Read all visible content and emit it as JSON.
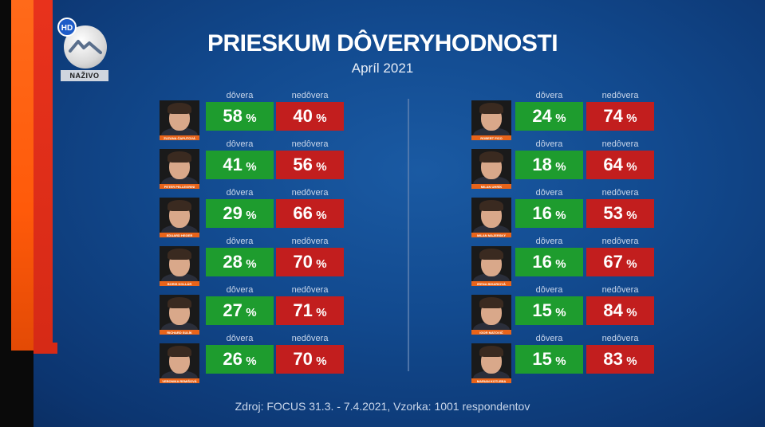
{
  "channel": {
    "hd_badge": "HD",
    "live_label": "NAŽIVO",
    "logo_icon": "markiza-wave-logo"
  },
  "title": "PRIESKUM DÔVERYHODNOSTI",
  "subtitle": "Apríl 2021",
  "labels": {
    "trust": "dôvera",
    "distrust": "nedôvera",
    "percent": "%"
  },
  "colors": {
    "trust": "#1e9c2e",
    "distrust": "#c21e1e",
    "name_tag": "#e8641a"
  },
  "left_column": [
    {
      "name": "ZUZANA ČAPUTOVÁ",
      "trust": "58",
      "distrust": "40"
    },
    {
      "name": "PETER PELLEGRINI",
      "trust": "41",
      "distrust": "56"
    },
    {
      "name": "EDUARD HEGER",
      "trust": "29",
      "distrust": "66"
    },
    {
      "name": "BORIS KOLLÁR",
      "trust": "28",
      "distrust": "70"
    },
    {
      "name": "RICHARD SULÍK",
      "trust": "27",
      "distrust": "71"
    },
    {
      "name": "VERONIKA REMIŠOVÁ",
      "trust": "26",
      "distrust": "70"
    }
  ],
  "right_column": [
    {
      "name": "ROBERT FICO",
      "trust": "24",
      "distrust": "74"
    },
    {
      "name": "MILAN UHRÍK",
      "trust": "18",
      "distrust": "64"
    },
    {
      "name": "MILAN MAJERSKÝ",
      "trust": "16",
      "distrust": "53"
    },
    {
      "name": "IRENA BIHARIOVÁ",
      "trust": "16",
      "distrust": "67"
    },
    {
      "name": "IGOR MATOVIČ",
      "trust": "15",
      "distrust": "84"
    },
    {
      "name": "MARIAN KOTLEBA",
      "trust": "15",
      "distrust": "83"
    }
  ],
  "source": "Zdroj: FOCUS 31.3. - 7.4.2021, Vzorka: 1001 respondentov"
}
